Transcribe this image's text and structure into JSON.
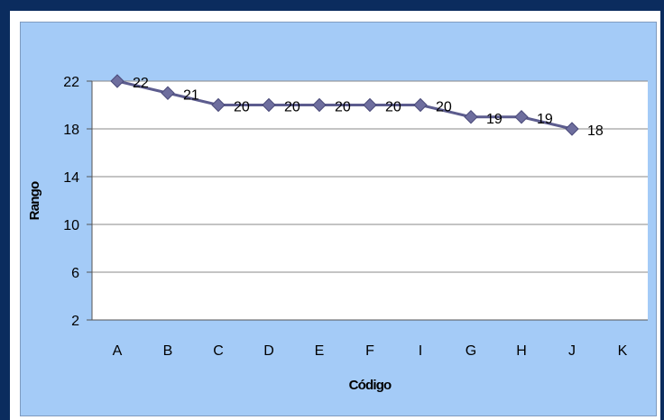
{
  "chart_data": {
    "type": "line",
    "categories": [
      "A",
      "B",
      "C",
      "D",
      "E",
      "F",
      "I",
      "G",
      "H",
      "J",
      "K"
    ],
    "series": [
      {
        "values": [
          22,
          21,
          20,
          20,
          20,
          20,
          20,
          19,
          19,
          18,
          null
        ]
      }
    ],
    "data_labels": [
      "22",
      "21",
      "20",
      "20",
      "20",
      "20",
      "20",
      "19",
      "19",
      "18"
    ],
    "y_ticks": [
      "2",
      "6",
      "10",
      "14",
      "18",
      "22"
    ],
    "ylim": [
      2,
      22
    ],
    "xlabel": "Código",
    "ylabel": "Rango",
    "grid": true,
    "colors": {
      "frame": "#0b2c5e",
      "background": "#a4cbf7",
      "plot": "#ffffff",
      "line": "#5c5c8e",
      "marker": "#6e6e9e"
    }
  }
}
